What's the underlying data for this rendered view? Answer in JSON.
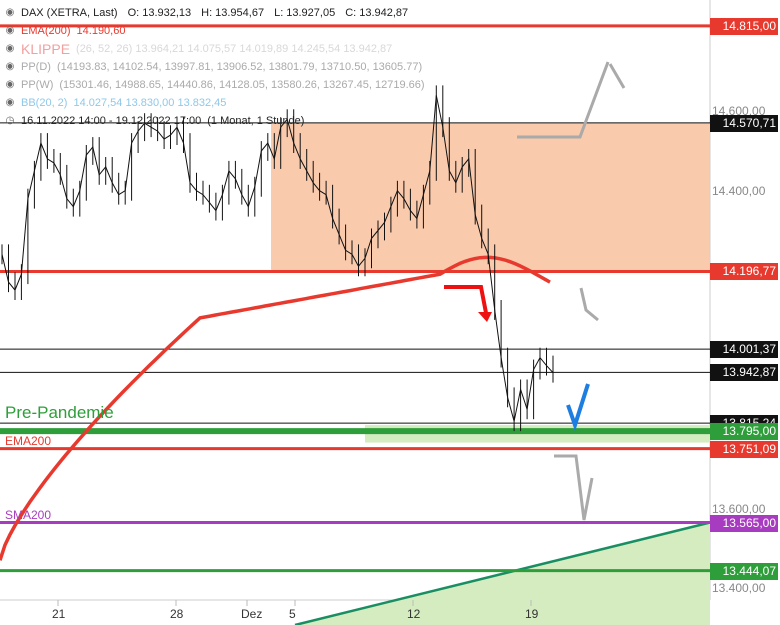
{
  "chart_data": {
    "type": "line",
    "instrument": "DAX (XETRA, Last)",
    "ohlc": {
      "o_label": "O:",
      "o": "13.932,13",
      "h_label": "H:",
      "h": "13.954,67",
      "l_label": "L:",
      "l": "13.927,05",
      "c_label": "C:",
      "c": "13.942,87"
    },
    "legend": [
      {
        "icon": "eye",
        "label": "EMA(200)",
        "value": "14.190,60",
        "color": "#e8392e"
      },
      {
        "icon": "eye",
        "label": "KLIPPE",
        "value": "",
        "color": "#f2a0a0"
      },
      {
        "icon": "eye",
        "label": "PP(D)",
        "value": "(14193.83, 14102.54, 13997.81, 13906.52, 13801.79, 13710.50, 13605.77)",
        "color": "#aaaaaa"
      },
      {
        "icon": "eye",
        "label": "PP(W)",
        "value": "(15301.46, 14988.65, 14440.86, 14128.05, 13580.26, 13267.45, 12719.66)",
        "color": "#aaaaaa"
      },
      {
        "icon": "eye",
        "label": "BB(20, 2)",
        "value": "14.027,54   13.830,00   13.832,45",
        "color": "#8fc8e8"
      },
      {
        "icon": "clock",
        "label": "16.11.2022 14:00 - 19.12.2022 17:00",
        "value": "(1 Monat, 1 Stunde)",
        "color": "#222222"
      }
    ],
    "faded_line": "(26, 52, 26)   13.964,21   14.075,57   14.019,89   14.245,54   13.942,87",
    "y_axis": {
      "ticks": [
        "14.600,00",
        "14.400,00",
        "13.600,00",
        "13.400,00"
      ],
      "range": [
        13370,
        14880
      ]
    },
    "x_axis": {
      "ticks": [
        "21",
        "28",
        "Dez",
        "5",
        "12",
        "19"
      ]
    },
    "price_levels": [
      {
        "value": 14815.0,
        "label": "14.815,00",
        "color": "#e8392e"
      },
      {
        "value": 14570.71,
        "label": "14.570,71",
        "color": "#111111"
      },
      {
        "value": 14196.77,
        "label": "14.196,77",
        "color": "#e8392e"
      },
      {
        "value": 14001.37,
        "label": "14.001,37",
        "color": "#111111"
      },
      {
        "value": 13942.87,
        "label": "13.942,87",
        "color": "#111111"
      },
      {
        "value": 13815.24,
        "label": "13.815,24",
        "color": "#111111"
      },
      {
        "value": 13795.0,
        "label": "13.795,00",
        "color": "#2e9e3a"
      },
      {
        "value": 13751.09,
        "label": "13.751,09",
        "color": "#e8392e"
      },
      {
        "value": 13565.0,
        "label": "13.565,00",
        "color": "#a83cc0"
      },
      {
        "value": 13444.07,
        "label": "13.444,07",
        "color": "#2e9e3a"
      }
    ],
    "line_labels": [
      {
        "text": "Pre-Pandemie",
        "color": "#2e9e3a"
      },
      {
        "text": "EMA200",
        "color": "#e8392e"
      },
      {
        "text": "SMA200",
        "color": "#a83cc0"
      }
    ],
    "price_series": [
      14240,
      14170,
      14150,
      14190,
      14380,
      14450,
      14520,
      14480,
      14470,
      14440,
      14380,
      14360,
      14400,
      14490,
      14510,
      14440,
      14460,
      14420,
      14390,
      14400,
      14520,
      14550,
      14570,
      14560,
      14550,
      14530,
      14540,
      14560,
      14520,
      14420,
      14400,
      14390,
      14370,
      14350,
      14390,
      14450,
      14430,
      14390,
      14360,
      14410,
      14500,
      14520,
      14480,
      14560,
      14580,
      14520,
      14480,
      14450,
      14420,
      14400,
      14390,
      14330,
      14290,
      14250,
      14240,
      14210,
      14230,
      14280,
      14300,
      14320,
      14360,
      14400,
      14380,
      14350,
      14330,
      14390,
      14450,
      14640,
      14560,
      14450,
      14420,
      14460,
      14480,
      14340,
      14280,
      14240,
      14100,
      13980,
      13880,
      13820,
      13900,
      13850,
      13950,
      13980,
      13960,
      13942
    ]
  }
}
